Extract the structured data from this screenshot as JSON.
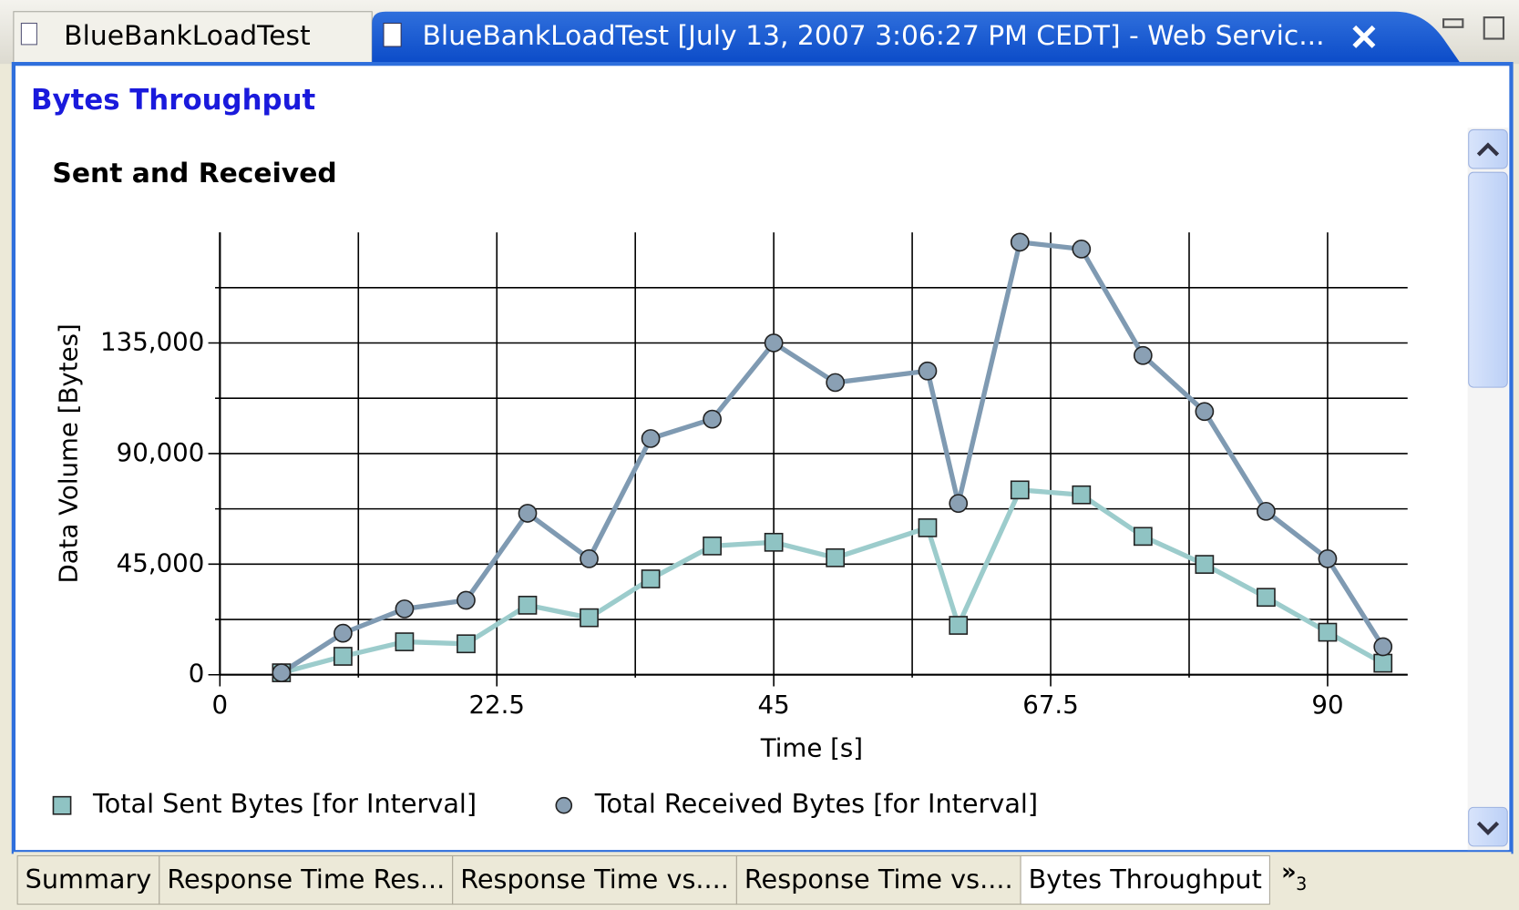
{
  "tabs": [
    "BlueBankLoadTest",
    "BlueBankLoadTest [July 13, 2007 3:06:27 PM CEDT] - Web Servic..."
  ],
  "page_title": "Bytes Throughput",
  "chart_data": {
    "type": "line",
    "title": "Sent and Received",
    "x_label": "Time [s]",
    "y_label": "Data Volume [Bytes]",
    "x": [
      5,
      10,
      15,
      20,
      25,
      30,
      35,
      40,
      45,
      50,
      57.5,
      60,
      65,
      70,
      75,
      80,
      85,
      90,
      94.5
    ],
    "series": [
      {
        "name": "Total Sent Bytes [for Interval]",
        "color": "#9ccccc",
        "marker": "square",
        "marker_color": "#8fc3c3",
        "values": [
          800,
          7500,
          13400,
          12600,
          28300,
          23200,
          39000,
          52400,
          53900,
          47600,
          59800,
          20100,
          75200,
          73200,
          56300,
          44900,
          31500,
          17300,
          4700
        ]
      },
      {
        "name": "Total Received Bytes [for Interval]",
        "color": "#7f9ab2",
        "marker": "circle",
        "marker_color": "#8aa0b4",
        "values": [
          800,
          16900,
          26800,
          30300,
          65700,
          47200,
          96100,
          104000,
          135000,
          118900,
          123600,
          69700,
          176000,
          173200,
          129900,
          107100,
          66500,
          47200,
          11400
        ]
      }
    ],
    "xlim": [
      0,
      96.5
    ],
    "xticks": [
      0,
      22.5,
      45,
      67.5,
      90
    ],
    "xminor": [
      11.25,
      33.75,
      56.25,
      78.75
    ],
    "ylim": [
      0,
      180000
    ],
    "yticks": [
      0,
      {
        "value": 45000,
        "label": "45,000"
      },
      {
        "value": 90000,
        "label": "90,000"
      },
      {
        "value": 135000,
        "label": "135,000"
      }
    ],
    "yminor": [
      22500,
      67500,
      112500,
      157500
    ],
    "grid": true,
    "legend": "bottom-left"
  },
  "bottom_tabs": [
    "Summary",
    "Response Time Res...",
    "Response Time vs....",
    "Response Time vs....",
    "Bytes Throughput"
  ],
  "overflow_count": "3"
}
